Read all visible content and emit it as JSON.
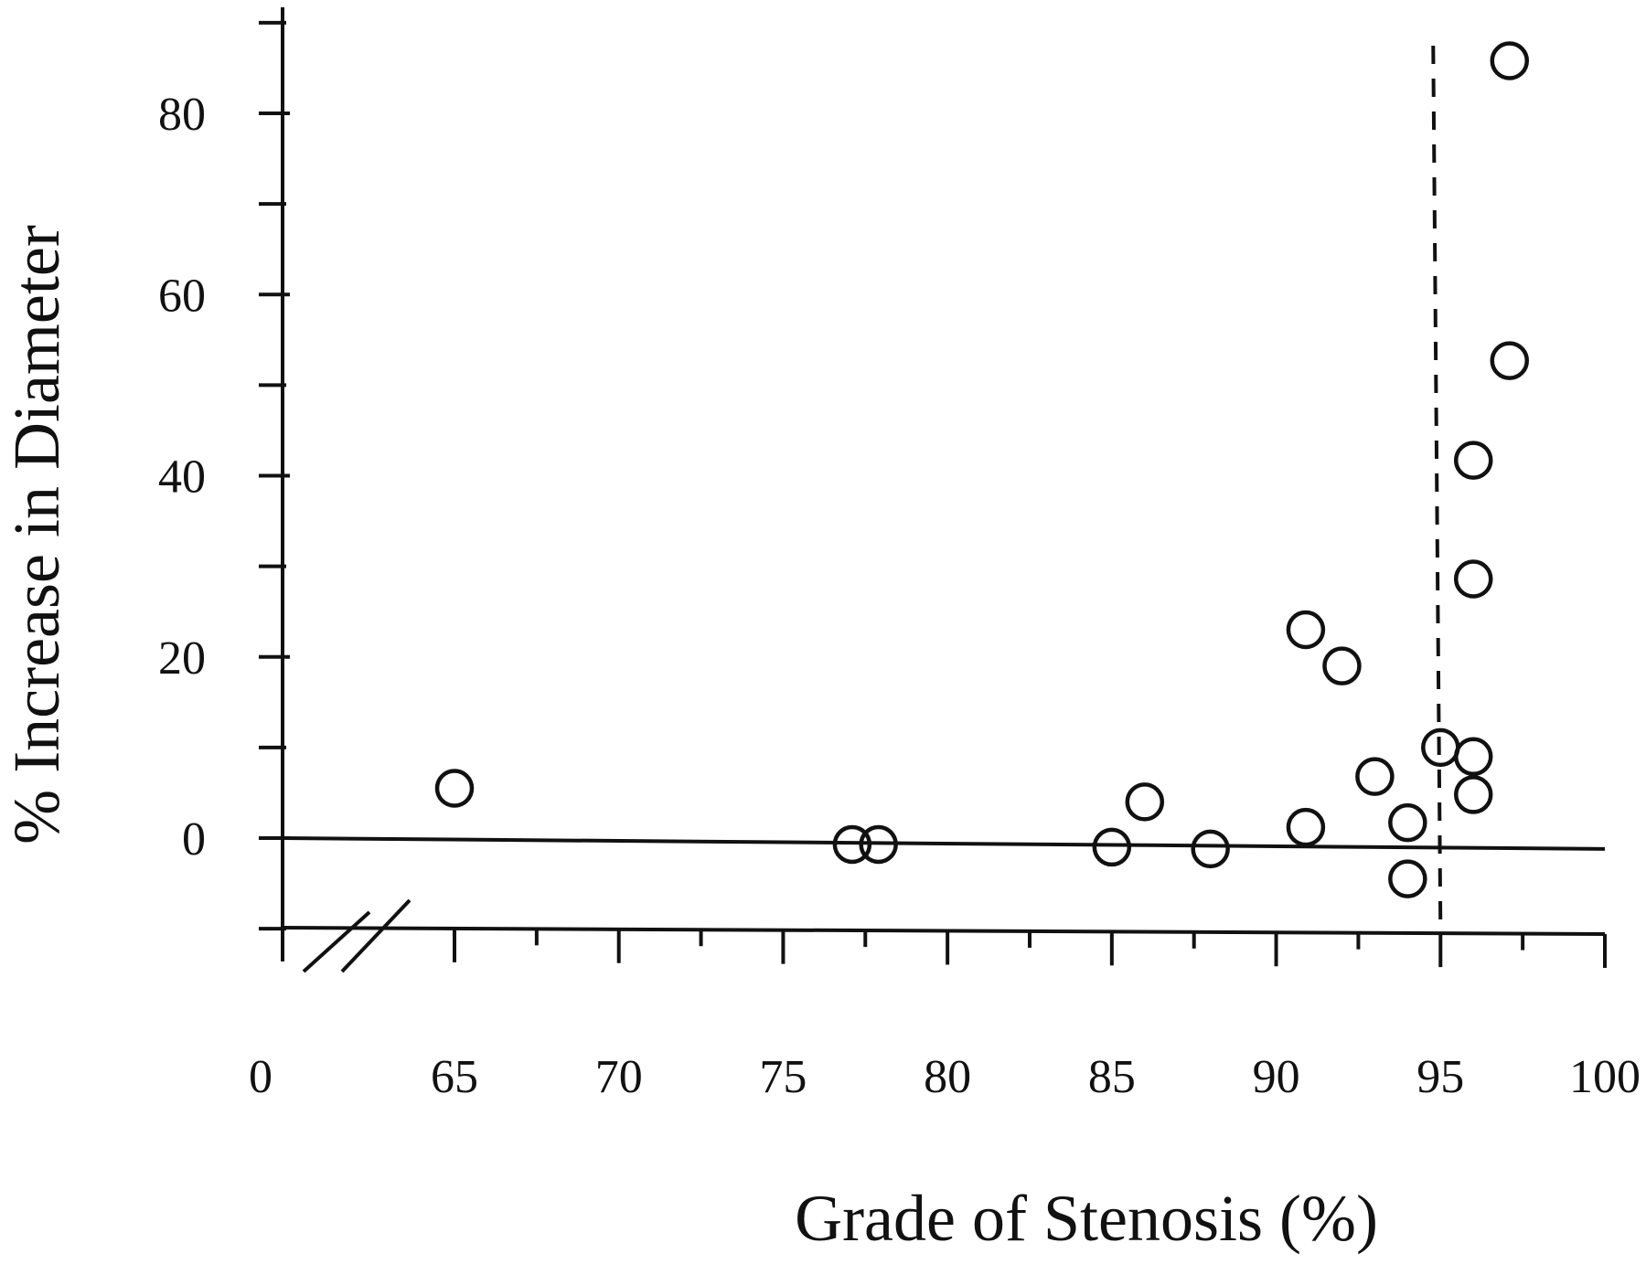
{
  "chart_data": {
    "type": "scatter",
    "xlabel": "Grade of Stenosis (%)",
    "ylabel": "% Increase in Diameter",
    "x_ticks": [
      0,
      65,
      70,
      75,
      80,
      85,
      90,
      95,
      100
    ],
    "x_tick_labels": [
      "0",
      "65",
      "70",
      "75",
      "80",
      "85",
      "90",
      "95",
      "100"
    ],
    "x_axis_break": "between 0 and 65",
    "xlim": [
      60,
      100
    ],
    "y_ticks": [
      0,
      20,
      40,
      60,
      80
    ],
    "y_tick_labels": [
      "0",
      "20",
      "40",
      "60",
      "80"
    ],
    "ylim": [
      -10,
      90
    ],
    "marker": "open-circle",
    "grid": false,
    "reference_lines": [
      {
        "type": "horizontal",
        "style": "solid",
        "y_start": 0,
        "y_end": -1.2
      },
      {
        "type": "vertical",
        "style": "dashed",
        "x": 95
      }
    ],
    "series": [
      {
        "points": [
          {
            "x": 65,
            "y": 5.5
          },
          {
            "x": 77.1,
            "y": -0.7
          },
          {
            "x": 77.9,
            "y": -0.7
          },
          {
            "x": 85,
            "y": -1
          },
          {
            "x": 86,
            "y": 4
          },
          {
            "x": 88,
            "y": -1.2
          },
          {
            "x": 90.9,
            "y": 1.2
          },
          {
            "x": 90.9,
            "y": 23
          },
          {
            "x": 92,
            "y": 19
          },
          {
            "x": 93,
            "y": 6.8
          },
          {
            "x": 94,
            "y": 1.7
          },
          {
            "x": 94,
            "y": -4.5
          },
          {
            "x": 95,
            "y": 10
          },
          {
            "x": 96,
            "y": 9
          },
          {
            "x": 96,
            "y": 4.8
          },
          {
            "x": 96,
            "y": 28.6
          },
          {
            "x": 96,
            "y": 41.7
          },
          {
            "x": 97.1,
            "y": 52.7
          },
          {
            "x": 97.1,
            "y": 85.8
          }
        ]
      }
    ]
  }
}
